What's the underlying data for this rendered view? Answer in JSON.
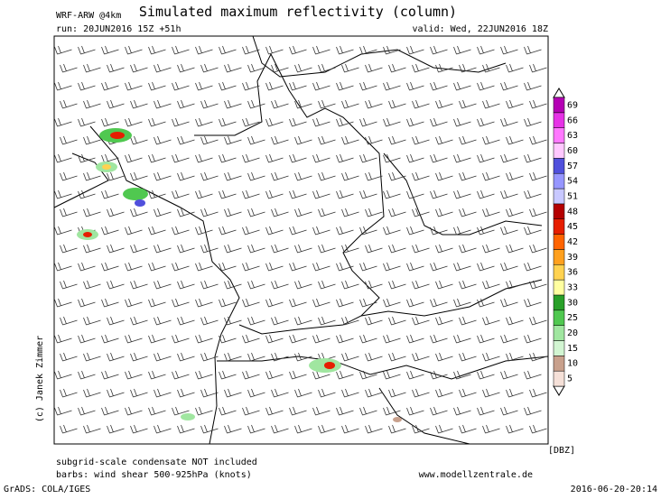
{
  "header": {
    "model": "WRF-ARW @4km",
    "title": "Simulated maximum reflectivity (column)",
    "run": "run: 20JUN2016 15Z +51h",
    "valid": "valid: Wed, 22JUN2016 18Z"
  },
  "side_label": "(c) Janek Zimmer",
  "colorbar": {
    "unit": "[DBZ]",
    "levels": [
      {
        "value": 5,
        "color": "#f5e0d8"
      },
      {
        "value": 10,
        "color": "#c8a08c"
      },
      {
        "value": 15,
        "color": "#d2f5d2"
      },
      {
        "value": 20,
        "color": "#a0e6a0"
      },
      {
        "value": 25,
        "color": "#50c850"
      },
      {
        "value": 30,
        "color": "#28a028"
      },
      {
        "value": 33,
        "color": "#ffffa0"
      },
      {
        "value": 36,
        "color": "#ffd250"
      },
      {
        "value": 39,
        "color": "#ffa01e"
      },
      {
        "value": 42,
        "color": "#ff6400"
      },
      {
        "value": 45,
        "color": "#e61e00"
      },
      {
        "value": 48,
        "color": "#b40000"
      },
      {
        "value": 51,
        "color": "#c8c8ff"
      },
      {
        "value": 54,
        "color": "#9696ff"
      },
      {
        "value": 57,
        "color": "#5050dc"
      },
      {
        "value": 60,
        "color": "#ffc8ff"
      },
      {
        "value": 63,
        "color": "#ff78ff"
      },
      {
        "value": 66,
        "color": "#e632e6"
      },
      {
        "value": 69,
        "color": "#b400b4"
      }
    ]
  },
  "footer": {
    "note1": "subgrid-scale condensate NOT included",
    "note2": "barbs: wind shear 500-925hPa (knots)",
    "website": "www.modellzentrale.de",
    "software": "GrADS: COLA/IGES",
    "timestamp": "2016-06-20-20:14"
  }
}
